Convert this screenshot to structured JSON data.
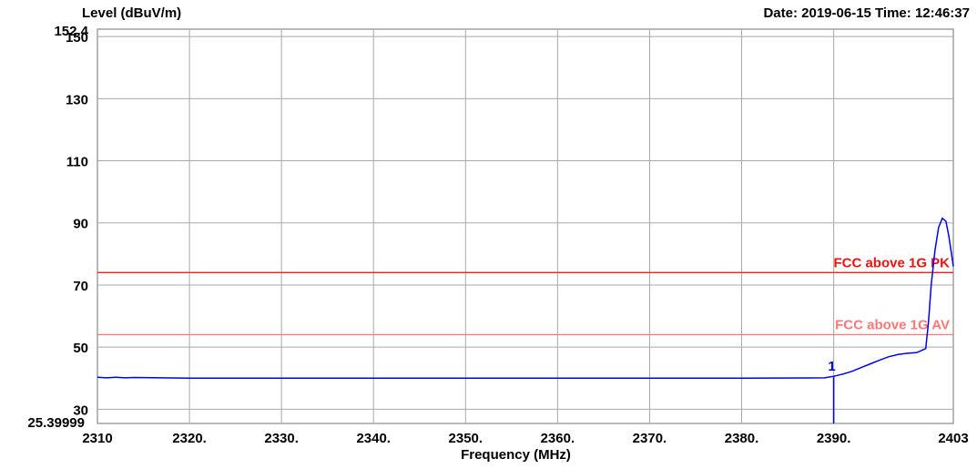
{
  "header": {
    "ylabel": "Level (dBuV/m)",
    "stamp": "Date: 2019-06-15  Time: 12:46:37"
  },
  "chart_data": {
    "type": "line",
    "title": "",
    "xlabel": "Frequency (MHz)",
    "ylabel": "Level (dBuV/m)",
    "xlim": [
      2310,
      2403
    ],
    "ylim": [
      25.39999,
      152.4
    ],
    "x_ticks": [
      {
        "value": 2310,
        "label": "2310"
      },
      {
        "value": 2320,
        "label": "2320."
      },
      {
        "value": 2330,
        "label": "2330."
      },
      {
        "value": 2340,
        "label": "2340."
      },
      {
        "value": 2350,
        "label": "2350."
      },
      {
        "value": 2360,
        "label": "2360."
      },
      {
        "value": 2370,
        "label": "2370."
      },
      {
        "value": 2380,
        "label": "2380."
      },
      {
        "value": 2390,
        "label": "2390."
      },
      {
        "value": 2403,
        "label": "2403"
      }
    ],
    "y_ticks": [
      {
        "value": 150,
        "label": "150"
      },
      {
        "value": 130,
        "label": "130"
      },
      {
        "value": 110,
        "label": "110"
      },
      {
        "value": 90,
        "label": "90"
      },
      {
        "value": 70,
        "label": "70"
      },
      {
        "value": 50,
        "label": "50"
      },
      {
        "value": 30,
        "label": "30"
      }
    ],
    "y_extent_labels": [
      {
        "value": 152.4,
        "label": "152.4"
      },
      {
        "value": 25.39999,
        "label": "25.39999"
      }
    ],
    "grid": true,
    "limit_lines": [
      {
        "name": "FCC above 1G PK",
        "value": 74,
        "color": "#ee2222",
        "label_color": "#ee1111"
      },
      {
        "name": "FCC above 1G AV",
        "value": 54,
        "color": "#ff7777",
        "label_color": "#ff7777"
      }
    ],
    "series": [
      {
        "color": "#0000ee",
        "x": [
          2310,
          2311,
          2312,
          2313,
          2314,
          2320,
          2340,
          2360,
          2380,
          2389,
          2390,
          2391,
          2392,
          2393,
          2394,
          2395,
          2396,
          2397,
          2398,
          2399,
          2400,
          2400.3,
          2400.6,
          2401,
          2401.4,
          2401.8,
          2402.2,
          2402.5,
          2402.8,
          2403
        ],
        "y": [
          40.3,
          40.1,
          40.3,
          40.1,
          40.2,
          40.0,
          40.0,
          40.0,
          40.0,
          40.1,
          40.6,
          41.3,
          42.2,
          43.4,
          44.6,
          45.8,
          46.9,
          47.6,
          48.0,
          48.2,
          49.5,
          58,
          70,
          81,
          88.5,
          91.5,
          90.5,
          86,
          80,
          76
        ]
      }
    ],
    "markers": [
      {
        "label": "1",
        "x": 2390,
        "y": 40.6
      }
    ]
  }
}
